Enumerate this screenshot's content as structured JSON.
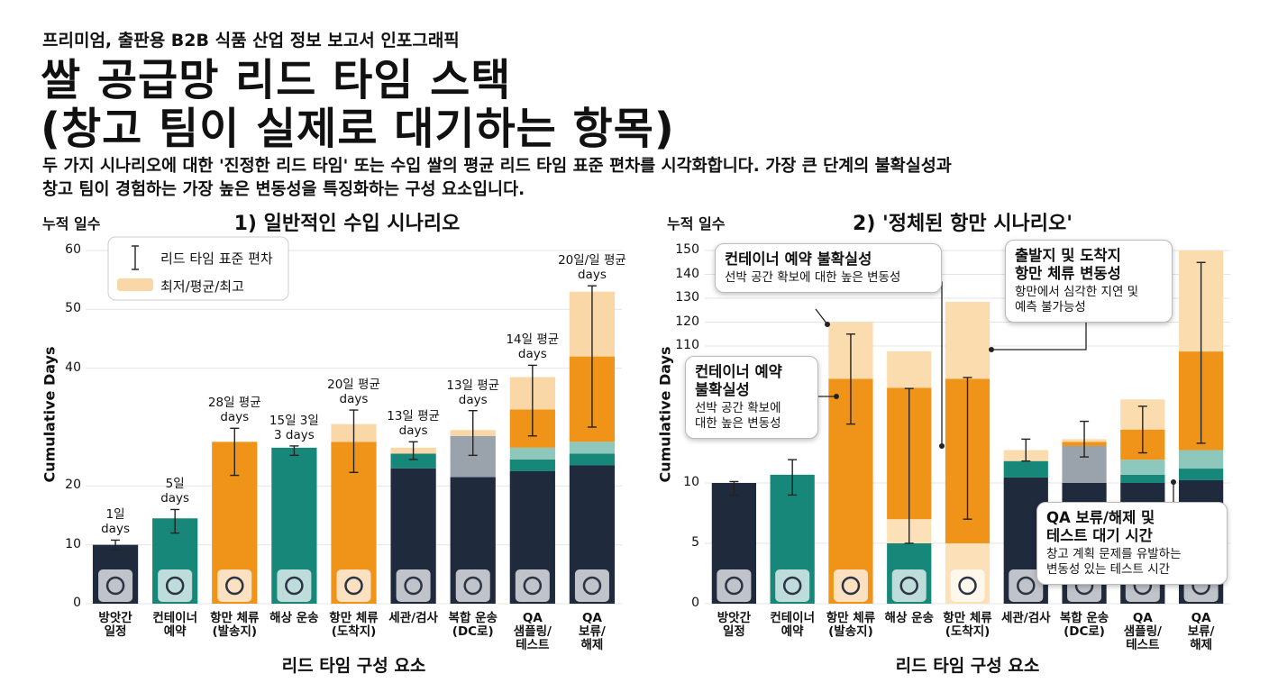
{
  "header": {
    "kicker": "프리미엄, 출판용 B2B 식품 산업 정보 보고서 인포그래픽",
    "title": "쌀 공급망 리드 타임 스택\n(창고 팀이 실제로 대기하는 항목)",
    "subtitle": "두 가지 시나리오에 대한 '진정한 리드 타임' 또는 수입 쌀의 평균 리드 타임 표준 편차를 시각화합니다. 가장 큰 단계의 불확실성과\n창고 팀이 경험하는  가장 높은 변동성을 특징화하는 구성 요소입니다."
  },
  "chart_data": [
    {
      "type": "bar",
      "stacked": true,
      "title": "1) 일반적인 수입 시나리오",
      "y_label_top": "누적 일수",
      "ylabel": "Cumulative Days",
      "xlabel": "리드 타임 구성 요소",
      "categories": [
        "방앗간\n일정",
        "컨테이너\n예약",
        "항만 체류\n(발송지)",
        "해상 운송",
        "항만 체류\n(도착지)",
        "세관/검사",
        "복합 운송\n(DC로)",
        "QA\n샘플링/\n테스트",
        "QA\n보류/\n해제"
      ],
      "series": [
        {
          "color": "#1f2a3d",
          "values": [
            10,
            null,
            null,
            null,
            null,
            23,
            21.5,
            22.5,
            23.5
          ]
        },
        {
          "color": "#17877a",
          "values": [
            null,
            14.5,
            null,
            26.5,
            null,
            2.5,
            null,
            2,
            2
          ]
        },
        {
          "color": "#9aa2ab",
          "values": [
            null,
            null,
            null,
            null,
            null,
            null,
            7,
            null,
            null
          ]
        },
        {
          "color": "#8ec7bb",
          "values": [
            null,
            null,
            null,
            null,
            null,
            null,
            null,
            2,
            2
          ]
        },
        {
          "color": "#ef9419",
          "values": [
            null,
            null,
            27.5,
            null,
            27.5,
            null,
            null,
            6.5,
            14.5
          ]
        },
        {
          "color": "#f9d7a6",
          "values": [
            null,
            null,
            null,
            null,
            3,
            1,
            1,
            5.5,
            11
          ]
        }
      ],
      "error_bars": {
        "values": [
          10,
          14,
          25.8,
          26,
          27.6,
          26,
          29,
          34.5,
          42
        ],
        "errors": [
          0.8,
          2,
          4,
          0.8,
          5.3,
          1.5,
          3.8,
          6,
          12
        ]
      },
      "bar_labels": [
        "1일\ndays",
        "5일\ndays",
        "28일 평균\ndays",
        "15일 3일\n3 days",
        "20일 평균\ndays",
        "13일 평균\ndays",
        "13일 평균\ndays",
        "14일 평균\ndays",
        "20일/일 평균\ndays"
      ],
      "legend": {
        "position": "upper left",
        "items": [
          "리드 타임 표준 편차",
          "최저/평균/최고"
        ]
      },
      "ylim": [
        0,
        60
      ],
      "yticks": [
        0,
        10,
        20,
        40,
        50,
        60
      ],
      "grid": true
    },
    {
      "type": "bar",
      "stacked": true,
      "title": "2) '정체된 항만 시나리오'",
      "y_label_top": "누적 일수",
      "ylabel": "Cumulative Days",
      "xlabel": "리드 타임 구성 요소",
      "categories": [
        "방앗간\n일정",
        "컨테이너\n예약",
        "항만 체류\n(발송지)",
        "해상 운송",
        "항만 체류\n(도착지)",
        "세관/검사",
        "복합 운송\n(DC로)",
        "QA\n샘플링/\n테스트",
        "QA\n보류/\n해제"
      ],
      "series": [
        {
          "color": "#1f2a3d",
          "values": [
            10,
            null,
            null,
            null,
            null,
            14,
            10,
            10,
            12
          ]
        },
        {
          "color": "#17877a",
          "values": [
            null,
            16,
            null,
            5,
            null,
            12,
            null,
            6,
            8.5
          ]
        },
        {
          "color": "#9aa2ab",
          "values": [
            null,
            null,
            null,
            null,
            null,
            null,
            27,
            null,
            null
          ]
        },
        {
          "color": "#8ec7bb",
          "values": [
            null,
            null,
            null,
            null,
            null,
            null,
            null,
            11,
            13.5
          ]
        },
        {
          "color": "#fbe0b8",
          "values": [
            null,
            null,
            null,
            2,
            5,
            null,
            null,
            null,
            null
          ]
        },
        {
          "color": "#ef9419",
          "values": [
            null,
            null,
            86,
            72.5,
            81,
            null,
            3,
            22,
            72
          ]
        },
        {
          "color": "#fbdcae",
          "values": [
            null,
            null,
            34,
            26.5,
            42.5,
            8,
            2,
            22,
            44
          ]
        }
      ],
      "error_bars": {
        "values": [
          10,
          18,
          84,
          42,
          47,
          34,
          42,
          49,
          92
        ],
        "errors": [
          1,
          9,
          31,
          37,
          40,
          8,
          13,
          17,
          53
        ]
      },
      "annotations": [
        {
          "title": "컨테이너 예약 불확실성",
          "text": "선박 공간 확보에 대한 높은 변동성"
        },
        {
          "title": "컨테이너 예약\n불확실성",
          "text": "선박 공간 확보에\n대한 높은 변동성"
        },
        {
          "title": "출발지 및 도착지\n항만 체류 변동성",
          "text": "항만에서 심각한 지연 및\n예측 불가능성"
        },
        {
          "title": "QA 보류/해제 및\n테스트 대기 시간",
          "text": "창고 계획 문제를 유발하는\n변동성 있는 테스트 시간"
        }
      ],
      "ylim": [
        0,
        150
      ],
      "yticks": [
        0,
        5,
        10,
        110,
        120,
        130,
        140,
        150
      ],
      "grid": true
    }
  ]
}
